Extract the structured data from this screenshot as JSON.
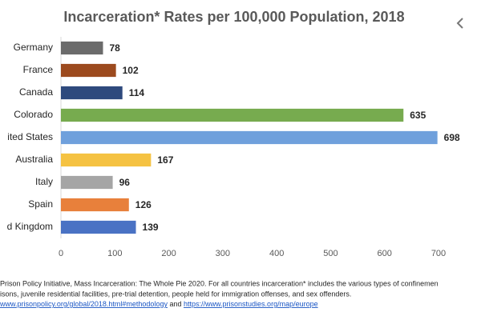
{
  "chart_data": {
    "type": "barh",
    "title": "Incarceration* Rates per 100,000 Population, 2018",
    "categories": [
      "Germany",
      "France",
      "Canada",
      "Colorado",
      "ited States",
      "Australia",
      "Italy",
      "Spain",
      "d Kingdom"
    ],
    "values": [
      78,
      102,
      114,
      635,
      698,
      167,
      96,
      126,
      139
    ],
    "colors": [
      "#6b6b6b",
      "#9c4a1e",
      "#2e4a7d",
      "#77ab4f",
      "#6fa0dc",
      "#f5c242",
      "#a5a5a5",
      "#e8803b",
      "#4a72c4"
    ],
    "xlim": [
      0,
      700
    ],
    "xticks": [
      0,
      100,
      200,
      300,
      400,
      500,
      600,
      700
    ],
    "grid": false,
    "notes": [
      "Prison Policy Initiative, Mass Incarceration: The Whole Pie 2020. For all countries incarceration* includes the various types of confinemen",
      "isons, juvenile residential facilities, pre-trial detention, people held for immigration offenses, and sex offenders."
    ],
    "links": [
      "www.prisonpolicy.org/global/2018.html#methodology",
      "https://www.prisonstudies.org/map/europe"
    ],
    "link_joiner": "and"
  }
}
